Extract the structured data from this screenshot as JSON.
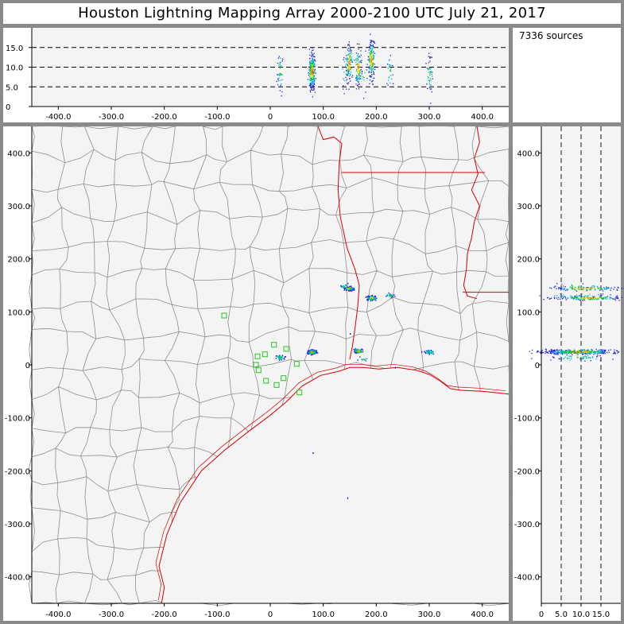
{
  "title": "Houston Lightning Mapping Array   2000-2100 UTC  July 21, 2017",
  "source_count_label": "7336 sources",
  "colors": {
    "background": "#f4f4f4",
    "county_lines": "#8e8e8e",
    "state_coast_lines": "#d40000",
    "station_markers": "#33cc33",
    "source_colors": [
      "#1d1dd0",
      "#00a0ff",
      "#00c8a0",
      "#00c000",
      "#f0e000",
      "#ff8000",
      "#e00000"
    ]
  },
  "chart_data": {
    "type": "scatter",
    "units": "km",
    "plan_view": {
      "x_range": [
        -450,
        450
      ],
      "y_range": [
        -450,
        450
      ],
      "x_ticks": [
        "-400.0",
        "-300.0",
        "-200.0",
        "-100.0",
        "0",
        "100.0",
        "200.0",
        "300.0",
        "400.0"
      ],
      "y_ticks": [
        "400.0",
        "300.0",
        "200.0",
        "100.0",
        "0",
        "-100.0",
        "-200.0",
        "-300.0",
        "-400.0"
      ]
    },
    "altitude_vs_x": {
      "x_range": [
        -450,
        450
      ],
      "altitude_range": [
        0,
        20
      ],
      "altitude_ticks": [
        "15.0",
        "10.0",
        "5.0",
        "0"
      ],
      "x_ticks": [
        "-400.0",
        "-300.0",
        "-200.0",
        "-100.0",
        "0",
        "100.0",
        "200.0",
        "300.0",
        "400.0"
      ],
      "dashed_lines_at": [
        5,
        10,
        15
      ]
    },
    "altitude_vs_y": {
      "y_range": [
        -450,
        450
      ],
      "altitude_range": [
        0,
        20
      ],
      "altitude_ticks": [
        "0",
        "5.0",
        "10.0",
        "15.0"
      ],
      "y_ticks": [
        "400.0",
        "300.0",
        "200.0",
        "100.0",
        "0",
        "-100.0",
        "-200.0",
        "-300.0",
        "-400.0"
      ],
      "dashed_lines_at": [
        5,
        10,
        15
      ]
    },
    "source_clusters": [
      {
        "x": 78,
        "y": 25,
        "z": 9,
        "n": 240
      },
      {
        "x": 18,
        "y": 15,
        "z": 9,
        "n": 40
      },
      {
        "x": 165,
        "y": 27,
        "z": 10,
        "n": 100
      },
      {
        "x": 148,
        "y": 145,
        "z": 11,
        "n": 110
      },
      {
        "x": 190,
        "y": 127,
        "z": 12,
        "n": 170
      },
      {
        "x": 300,
        "y": 25,
        "z": 8,
        "n": 45
      },
      {
        "x": 225,
        "y": 132,
        "z": 9,
        "n": 25
      },
      {
        "x": 175,
        "y": 12,
        "z": 8,
        "n": 12
      },
      {
        "x": 140,
        "y": 150,
        "z": 9,
        "n": 20
      }
    ],
    "stations": [
      {
        "x": -87,
        "y": 93
      },
      {
        "x": -24,
        "y": 16
      },
      {
        "x": -27,
        "y": 0
      },
      {
        "x": -10,
        "y": 20
      },
      {
        "x": 7,
        "y": 38
      },
      {
        "x": 30,
        "y": 30
      },
      {
        "x": 50,
        "y": 2
      },
      {
        "x": -22,
        "y": -10
      },
      {
        "x": -8,
        "y": -30
      },
      {
        "x": 25,
        "y": -25
      },
      {
        "x": 12,
        "y": -38
      },
      {
        "x": 55,
        "y": -52
      }
    ]
  }
}
